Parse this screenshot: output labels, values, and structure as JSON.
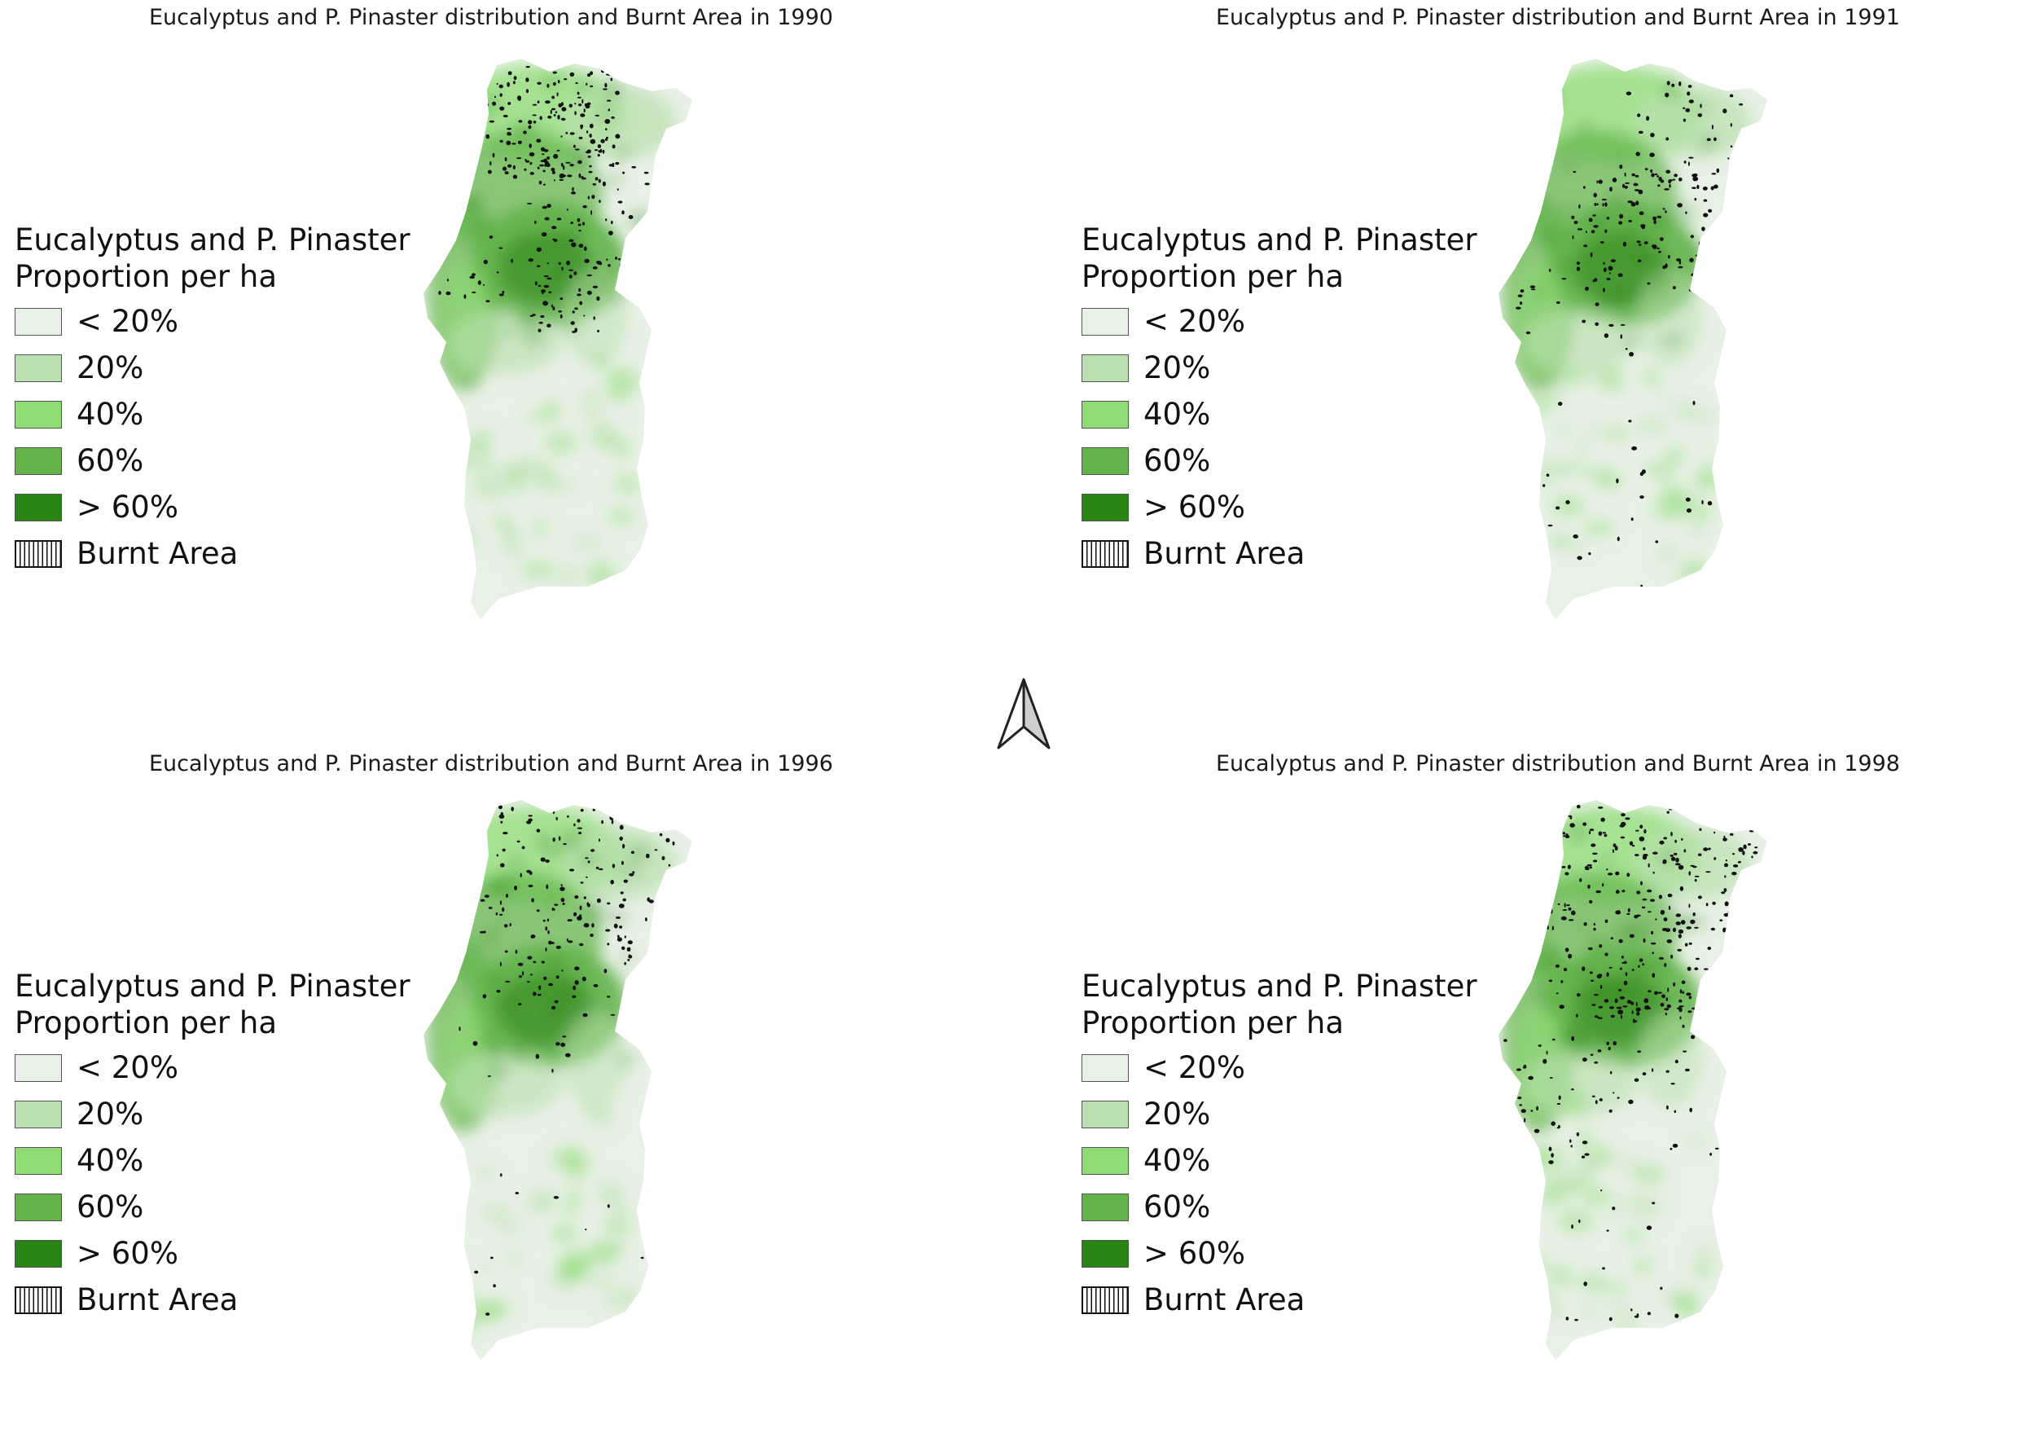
{
  "panels": [
    {
      "title": "Eucalyptus and P. Pinaster distribution and Burnt Area in 1990",
      "year": "1990",
      "burn_focus": "north-west and centre"
    },
    {
      "title": "Eucalyptus and P. Pinaster distribution and Burnt Area in 1991",
      "year": "1991",
      "burn_focus": "centre and south"
    },
    {
      "title": "Eucalyptus and P. Pinaster distribution and Burnt Area in 1996",
      "year": "1996",
      "burn_focus": "north"
    },
    {
      "title": "Eucalyptus and P. Pinaster distribution and Burnt Area in 1998",
      "year": "1998",
      "burn_focus": "north and scattered"
    }
  ],
  "legend": {
    "title_line1": "Eucalyptus and P. Pinaster",
    "title_line2": "Proportion per ha",
    "items": [
      {
        "label": "< 20%",
        "color": "#e8f1e6"
      },
      {
        "label": "20%",
        "color": "#b9e0ae"
      },
      {
        "label": "40%",
        "color": "#8fdc75"
      },
      {
        "label": "60%",
        "color": "#62b34a"
      },
      {
        "label": "> 60%",
        "color": "#2a8414"
      },
      {
        "label": "Burnt Area",
        "pattern": "vertical-hatch"
      }
    ]
  },
  "north_arrow": {
    "icon": "north-arrow-icon"
  }
}
